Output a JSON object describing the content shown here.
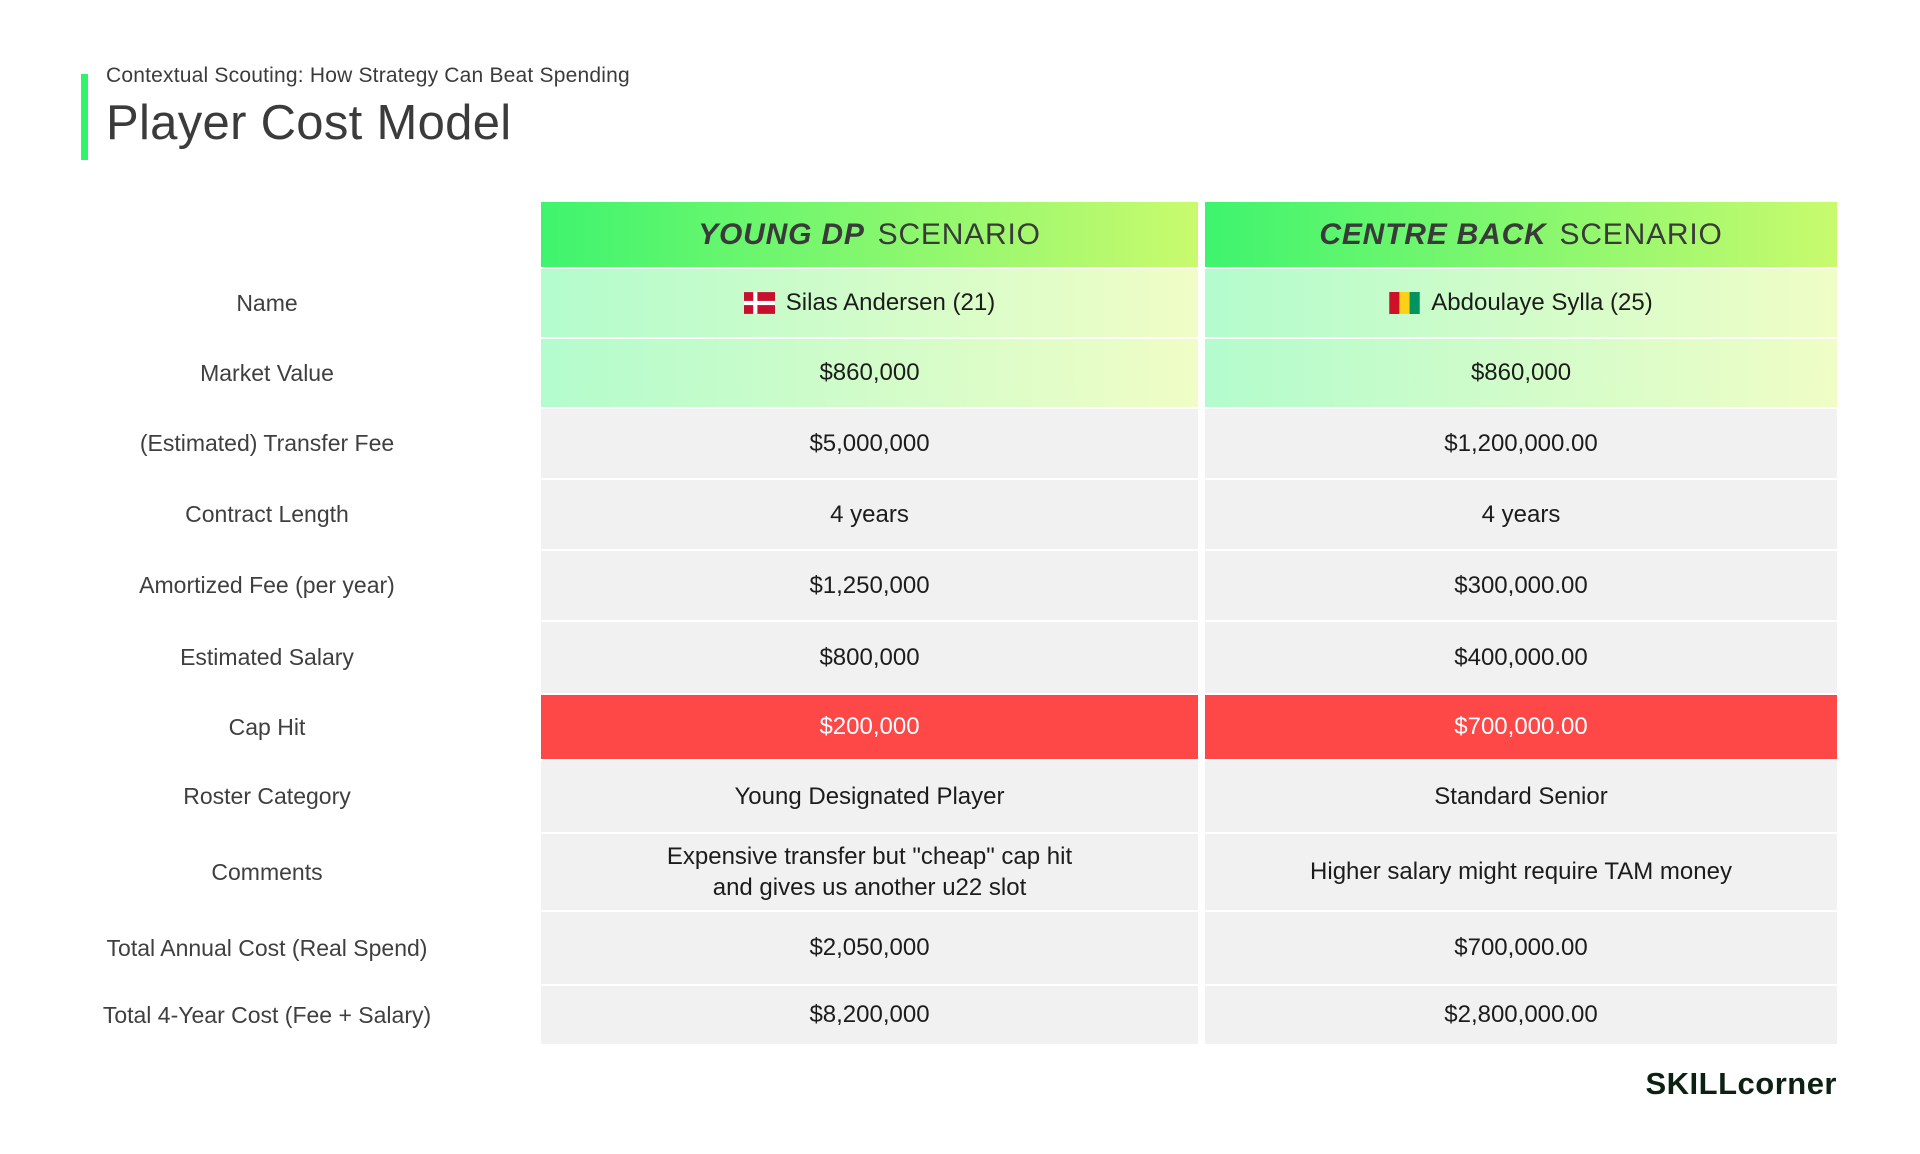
{
  "header": {
    "kicker": "Contextual Scouting: How Strategy Can Beat Spending",
    "title": "Player Cost Model"
  },
  "table": {
    "columns": [
      {
        "name_emphasis": "YOUNG DP",
        "name_rest": "SCENARIO"
      },
      {
        "name_emphasis": "CENTRE BACK",
        "name_rest": "SCENARIO"
      }
    ],
    "rows": [
      {
        "label": "Name",
        "style": "green",
        "values": [
          {
            "flag": "denmark",
            "text": "Silas Andersen (21)"
          },
          {
            "flag": "guinea",
            "text": "Abdoulaye Sylla (25)"
          }
        ]
      },
      {
        "label": "Market Value",
        "style": "green",
        "values": [
          "$860,000",
          "$860,000"
        ]
      },
      {
        "label": "(Estimated) Transfer Fee",
        "style": "gray",
        "values": [
          "$5,000,000",
          "$1,200,000.00"
        ]
      },
      {
        "label": "Contract Length",
        "style": "gray",
        "values": [
          "4 years",
          "4 years"
        ]
      },
      {
        "label": "Amortized Fee (per year)",
        "style": "gray",
        "values": [
          "$1,250,000",
          "$300,000.00"
        ]
      },
      {
        "label": "Estimated Salary",
        "style": "gray",
        "values": [
          "$800,000",
          "$400,000.00"
        ]
      },
      {
        "label": "Cap Hit",
        "style": "red",
        "values": [
          "$200,000",
          "$700,000.00"
        ]
      },
      {
        "label": "Roster Category",
        "style": "gray",
        "values": [
          "Young Designated Player",
          "Standard Senior"
        ]
      },
      {
        "label": "Comments",
        "style": "gray",
        "values": [
          "Expensive transfer but \"cheap\" cap hit\nand gives us another u22 slot",
          "Higher salary might require TAM money"
        ]
      },
      {
        "label": "Total Annual Cost (Real Spend)",
        "style": "gray",
        "values": [
          "$2,050,000",
          "$700,000.00"
        ]
      },
      {
        "label": "Total 4-Year Cost (Fee + Salary)",
        "style": "gray",
        "values": [
          "$8,200,000",
          "$2,800,000.00"
        ]
      }
    ]
  },
  "footer": {
    "brand": "SKILLcorner"
  },
  "colors": {
    "accent_green": "#2ff56a",
    "header_gradient_start": "#3ef46e",
    "header_gradient_end": "#c9fa6e",
    "green_row_gradient_start": "#b3fccd",
    "green_row_gradient_end": "#f0fdc6",
    "gray_row": "#f1f1f1",
    "red_row": "#fe4747",
    "header_text": "#3a3a3a",
    "label_text": "#3f3f3f",
    "value_text": "#1c1c1c",
    "cap_hit_text": "#ffffff",
    "brand_text": "#0c2112"
  },
  "flags": {
    "denmark": {
      "field": "#c8102e",
      "cross": "#ffffff"
    },
    "guinea": {
      "stripes": [
        "#ce1126",
        "#fcd116",
        "#009460"
      ]
    }
  }
}
